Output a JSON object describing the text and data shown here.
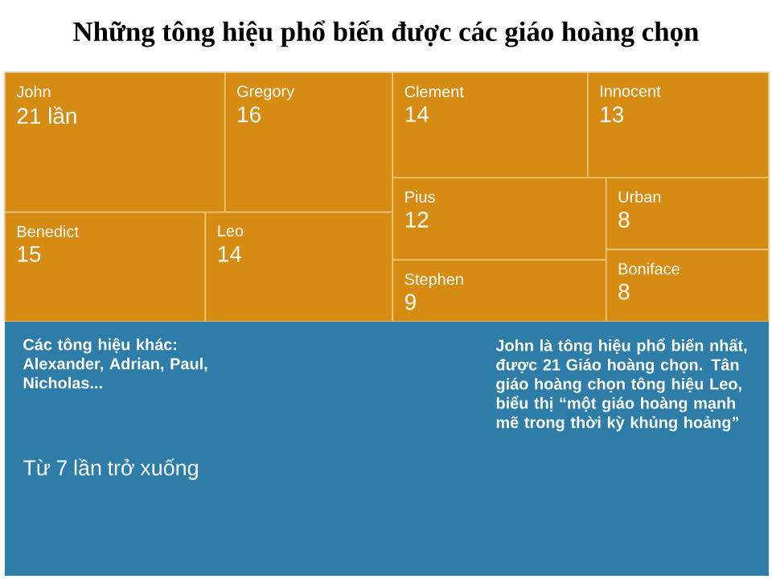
{
  "chart_data": {
    "type": "other",
    "title": "Những tông hiệu phổ biến được các giáo hoàng chọn",
    "categories": [
      "John",
      "Gregory",
      "Benedict",
      "Leo",
      "Clement",
      "Innocent",
      "Pius",
      "Stephen",
      "Urban",
      "Boniface"
    ],
    "values": [
      21,
      16,
      15,
      14,
      14,
      13,
      12,
      9,
      8,
      8
    ],
    "value_labels": [
      "21 lần",
      "16",
      "15",
      "14",
      "14",
      "13",
      "12",
      "9",
      "8",
      "8"
    ],
    "colors": [
      "#d68b12",
      "#d68b12",
      "#d68b12",
      "#d68b12",
      "#d68b12",
      "#d68b12",
      "#d68b12",
      "#d68b12",
      "#d68b12",
      "#d68b12"
    ],
    "annotations": [
      "Các tông hiệu khác: Alexander, Adrian, Paul, Nicholas...",
      "Từ 7 lần trở xuống",
      "John là tông hiệu phổ biến nhất, được 21 Giáo hoàng chọn. Tân giáo hoàng chọn tông hiệu Leo, biểu thị “một giáo hoàng mạnh mẽ trong thời kỳ khủng hoảng”"
    ]
  }
}
